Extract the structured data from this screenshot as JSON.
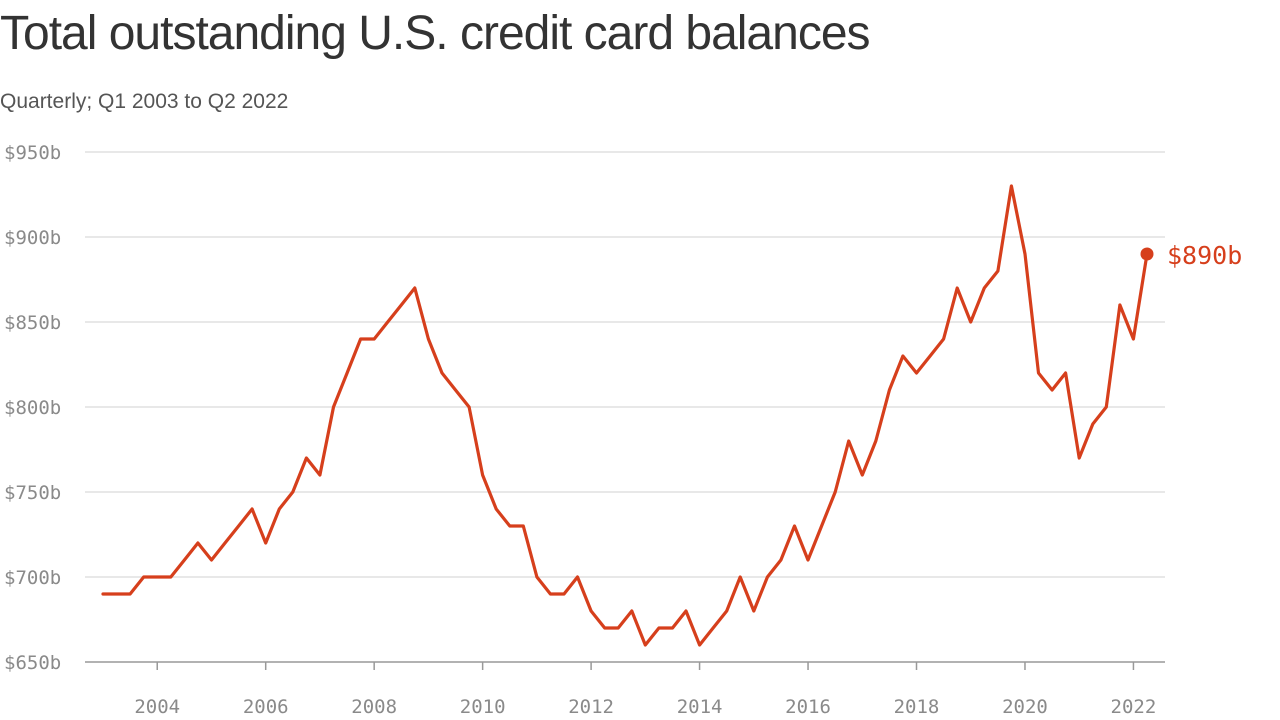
{
  "title": "Total outstanding U.S. credit card balances",
  "subtitle": "Quarterly; Q1 2003 to Q2 2022",
  "colors": {
    "line": "#d63f1c",
    "grid": "#e0e0e0",
    "axis": "#999999",
    "tick_text": "#8a8a8a"
  },
  "chart_data": {
    "type": "line",
    "title": "Total outstanding U.S. credit card balances",
    "subtitle": "Quarterly; Q1 2003 to Q2 2022",
    "xlabel": "",
    "ylabel": "",
    "ylim": [
      650,
      950
    ],
    "xlim": [
      2003,
      2022.25
    ],
    "yticks": [
      650,
      700,
      750,
      800,
      850,
      900,
      950
    ],
    "ytick_labels": [
      "$650b",
      "$700b",
      "$750b",
      "$800b",
      "$850b",
      "$900b",
      "$950b"
    ],
    "xticks": [
      2004,
      2006,
      2008,
      2010,
      2012,
      2014,
      2016,
      2018,
      2020,
      2022
    ],
    "xtick_labels": [
      "2004",
      "2006",
      "2008",
      "2010",
      "2012",
      "2014",
      "2016",
      "2018",
      "2020",
      "2022"
    ],
    "grid": true,
    "end_label": "$890b",
    "series": [
      {
        "x": [
          "2003 Q1",
          "2003 Q2",
          "2003 Q3",
          "2003 Q4",
          "2004 Q1",
          "2004 Q2",
          "2004 Q3",
          "2004 Q4",
          "2005 Q1",
          "2005 Q2",
          "2005 Q3",
          "2005 Q4",
          "2006 Q1",
          "2006 Q2",
          "2006 Q3",
          "2006 Q4",
          "2007 Q1",
          "2007 Q2",
          "2007 Q3",
          "2007 Q4",
          "2008 Q1",
          "2008 Q2",
          "2008 Q3",
          "2008 Q4",
          "2009 Q1",
          "2009 Q2",
          "2009 Q3",
          "2009 Q4",
          "2010 Q1",
          "2010 Q2",
          "2010 Q3",
          "2010 Q4",
          "2011 Q1",
          "2011 Q2",
          "2011 Q3",
          "2011 Q4",
          "2012 Q1",
          "2012 Q2",
          "2012 Q3",
          "2012 Q4",
          "2013 Q1",
          "2013 Q2",
          "2013 Q3",
          "2013 Q4",
          "2014 Q1",
          "2014 Q2",
          "2014 Q3",
          "2014 Q4",
          "2015 Q1",
          "2015 Q2",
          "2015 Q3",
          "2015 Q4",
          "2016 Q1",
          "2016 Q2",
          "2016 Q3",
          "2016 Q4",
          "2017 Q1",
          "2017 Q2",
          "2017 Q3",
          "2017 Q4",
          "2018 Q1",
          "2018 Q2",
          "2018 Q3",
          "2018 Q4",
          "2019 Q1",
          "2019 Q2",
          "2019 Q3",
          "2019 Q4",
          "2020 Q1",
          "2020 Q2",
          "2020 Q3",
          "2020 Q4",
          "2021 Q1",
          "2021 Q2",
          "2021 Q3",
          "2021 Q4",
          "2022 Q1",
          "2022 Q2"
        ],
        "values": [
          690,
          690,
          690,
          700,
          700,
          700,
          710,
          720,
          710,
          720,
          730,
          740,
          720,
          740,
          750,
          770,
          760,
          800,
          820,
          840,
          840,
          850,
          860,
          870,
          840,
          820,
          810,
          800,
          760,
          740,
          730,
          730,
          700,
          690,
          690,
          700,
          680,
          670,
          670,
          680,
          660,
          670,
          670,
          680,
          660,
          670,
          680,
          700,
          680,
          700,
          710,
          730,
          710,
          730,
          750,
          780,
          760,
          780,
          810,
          830,
          820,
          830,
          840,
          870,
          850,
          870,
          880,
          930,
          890,
          820,
          810,
          820,
          770,
          790,
          800,
          860,
          840,
          890
        ]
      }
    ]
  }
}
